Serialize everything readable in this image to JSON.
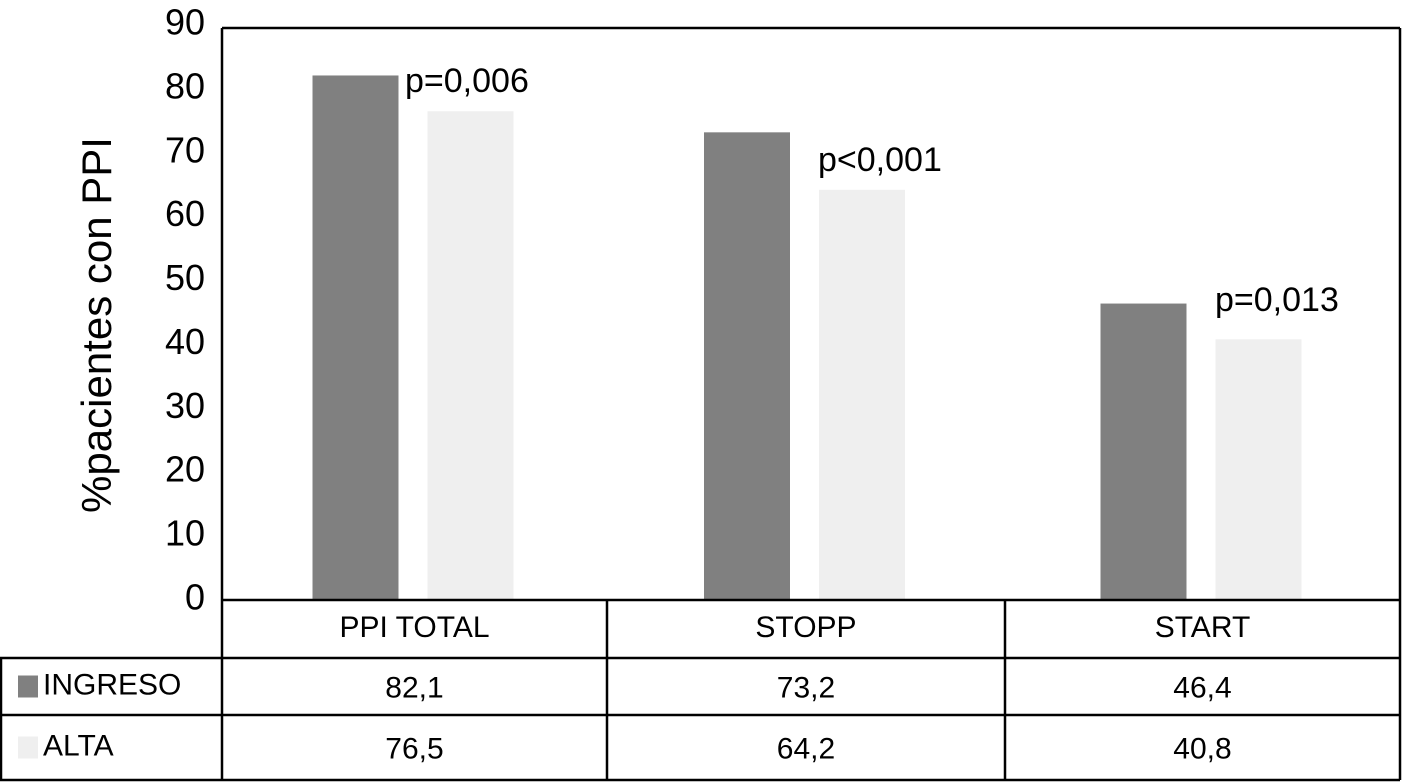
{
  "chart_data": {
    "type": "bar",
    "y_label": "%pacientes con PPI",
    "categories": [
      "PPI TOTAL",
      "STOPP",
      "START"
    ],
    "series": [
      {
        "name": "INGRESO",
        "color": "#808080",
        "values": [
          82.1,
          73.2,
          46.4
        ],
        "value_labels": [
          "82,1",
          "73,2",
          "46,4"
        ]
      },
      {
        "name": "ALTA",
        "color": "#efefef",
        "values": [
          76.5,
          64.2,
          40.8
        ],
        "value_labels": [
          "76,5",
          "64,2",
          "40,8"
        ]
      }
    ],
    "annotations": [
      "p=0,006",
      "p<0,001",
      "p=0,013"
    ],
    "ylim": [
      0,
      90
    ],
    "yticks": [
      0,
      10,
      20,
      30,
      40,
      50,
      60,
      70,
      80,
      90
    ],
    "grid": false
  }
}
